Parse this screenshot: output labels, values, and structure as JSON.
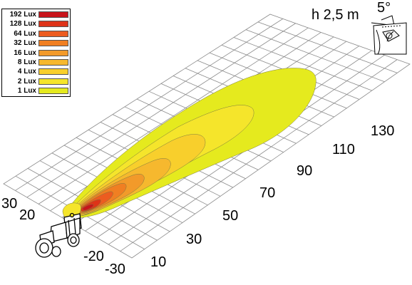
{
  "legend": {
    "items": [
      {
        "label": "192 Lux",
        "color": "#c8141b"
      },
      {
        "label": "128 Lux",
        "color": "#de3318"
      },
      {
        "label": "64 Lux",
        "color": "#ec5c20"
      },
      {
        "label": "32 Lux",
        "color": "#f07f22"
      },
      {
        "label": "16 Lux",
        "color": "#f29a2a"
      },
      {
        "label": "8 Lux",
        "color": "#f6b82e"
      },
      {
        "label": "4 Lux",
        "color": "#f8cf2c"
      },
      {
        "label": "2 Lux",
        "color": "#f5e52b"
      },
      {
        "label": "1 Lux",
        "color": "#e5ea1e"
      }
    ]
  },
  "mounting": {
    "height_label": "h 2,5 m",
    "angle_label": "5°"
  },
  "axes": {
    "distance_ticks": [
      "10",
      "30",
      "50",
      "70",
      "90",
      "110",
      "130"
    ],
    "lateral_ticks": [
      "30",
      "20",
      "-20",
      "-30"
    ]
  },
  "colors": {
    "grid": "#8a8a8a",
    "outline": "#000000"
  }
}
